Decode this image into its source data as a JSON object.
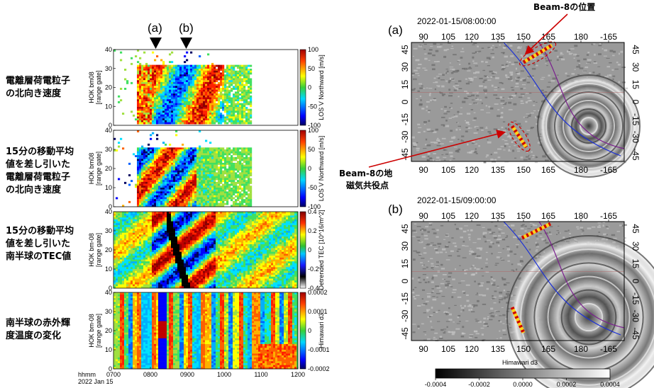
{
  "left_labels": [
    [
      "電離層荷電粒子",
      "の北向き速度"
    ],
    [
      "15分の移動平均",
      "値を差し引いた",
      "電離層荷電粒子",
      "の北向き速度"
    ],
    [
      "15分の移動平均",
      "値を差し引いた",
      "南半球のTEC値"
    ],
    [
      "南半球の赤外輝",
      "度温度の変化"
    ]
  ],
  "markers": [
    "(a)",
    "(b)"
  ],
  "chart_data": [
    {
      "type": "heatmap",
      "ylabel": "HOK bm08 [range gate]",
      "ylim": [
        0,
        40
      ],
      "yticks": [
        0,
        10,
        20,
        30,
        40
      ],
      "colorbar_label": "LOS V Northward [m/s]",
      "colorbar_ticks": [
        "100",
        "50",
        "0",
        "-50",
        "-100"
      ],
      "colorbar_range": [
        -100,
        100
      ],
      "pattern": "blocks"
    },
    {
      "type": "heatmap",
      "ylabel": "HOK bm08 [range gate]",
      "ylim": [
        0,
        40
      ],
      "yticks": [
        0,
        10,
        20,
        30,
        40
      ],
      "colorbar_label": "LOS V Northward [m/s]",
      "colorbar_ticks": [
        "100",
        "50",
        "0",
        "-50",
        "-100"
      ],
      "colorbar_range": [
        -100,
        100
      ],
      "pattern": "diagonal"
    },
    {
      "type": "heatmap",
      "ylabel": "HOK bm-08 [range gate]",
      "ylim": [
        0,
        40
      ],
      "yticks": [
        0,
        10,
        20,
        30,
        40
      ],
      "colorbar_label": "Detrended TEC [10^16/m^2]",
      "colorbar_ticks": [
        "0.4",
        "0.2",
        "0",
        "-0.2",
        "-0.4"
      ],
      "colorbar_range": [
        -0.4,
        0.4
      ],
      "pattern": "tec"
    },
    {
      "type": "heatmap",
      "ylabel": "HOK bm-08 [range gate]",
      "ylim": [
        0,
        40
      ],
      "yticks": [
        0,
        10,
        20,
        30,
        40
      ],
      "colorbar_label": "Himawari d3",
      "colorbar_ticks": [
        "0.0002",
        "0.0001",
        "0",
        "-0.0001",
        "-0.0002"
      ],
      "colorbar_range": [
        -0.0002,
        0.0002
      ],
      "pattern": "himawari",
      "x_ticks": [
        "0700",
        "0800",
        "0900",
        "1000",
        "1100",
        "1200"
      ],
      "x_prefix": [
        "hhmm",
        "2022 Jan 15"
      ]
    }
  ],
  "maps": [
    {
      "label": "(a)",
      "datetime": "2022-01-15/08:00:00",
      "lon_ticks": [
        "90",
        "105",
        "120",
        "135",
        "150",
        "165",
        "180",
        "-165"
      ],
      "lat_ticks_left": [
        "45",
        "30",
        "15",
        "0",
        "-15",
        "-30",
        "-45"
      ],
      "lat_ticks_right": [
        "45",
        "30",
        "15",
        "0",
        "-15",
        "-30",
        "-45"
      ]
    },
    {
      "label": "(b)",
      "datetime": "2022-01-15/09:00:00",
      "lon_ticks": [
        "90",
        "105",
        "120",
        "135",
        "150",
        "165",
        "180",
        "-165"
      ],
      "lat_ticks_left": [
        "45",
        "30",
        "15",
        "0",
        "-15",
        "-30",
        "-45"
      ],
      "lat_ticks_right": [
        "45",
        "30",
        "15",
        "0",
        "-15",
        "-30",
        "-45"
      ]
    }
  ],
  "annotations": {
    "beam_position": "Beam-8の位置",
    "conjugate_lines": [
      "Beam-8の地",
      "磁気共役点"
    ]
  },
  "map_colorbar": {
    "label": "Himawari d3",
    "ticks": [
      "-0.0004",
      "-0.0002",
      "0.0000",
      "0.0002",
      "0.0004"
    ]
  },
  "colors": {
    "beam_red": "#cc0000",
    "beam_yellow": "#ffd21a",
    "orbit_blue": "#1a2fd6",
    "orbit_purple": "#7a1e8e"
  }
}
